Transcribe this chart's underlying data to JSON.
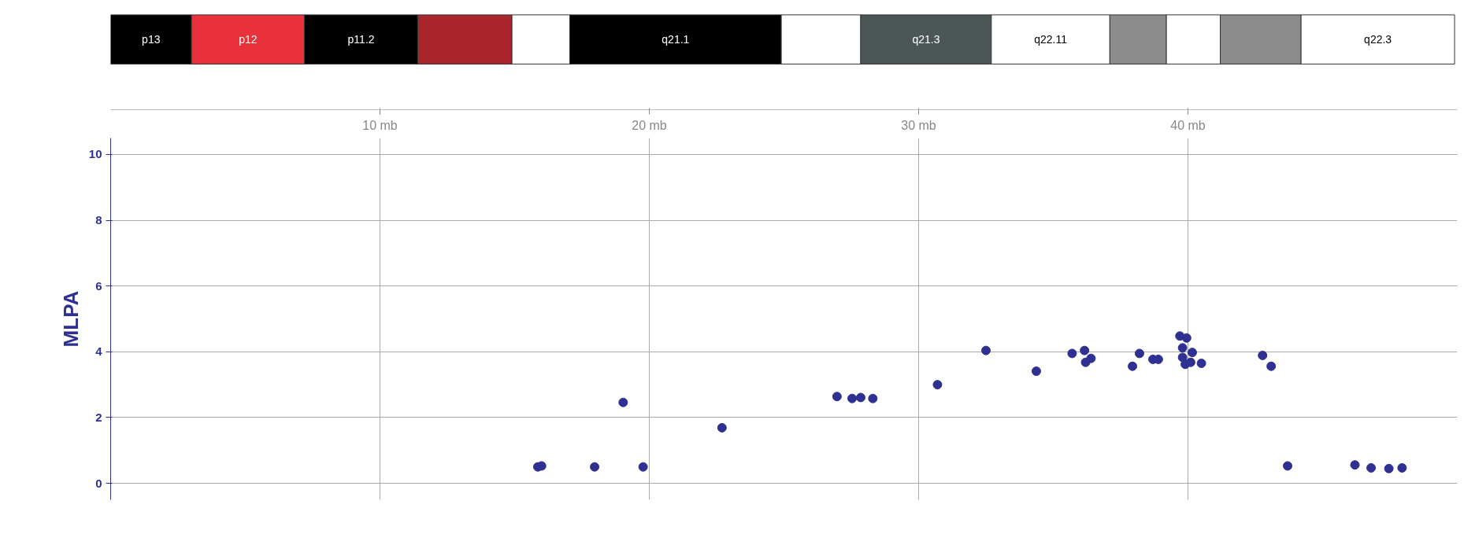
{
  "chart_data": [
    {
      "type": "bar",
      "orientation": "horizontal",
      "stacked": true,
      "categories": [
        null
      ],
      "xlim": [
        0,
        50
      ],
      "xticks": [
        {
          "value": 10,
          "label": "10 mb"
        },
        {
          "value": 20,
          "label": "20 mb"
        },
        {
          "value": 30,
          "label": "30 mb"
        },
        {
          "value": 40,
          "label": "40 mb"
        }
      ],
      "series": [
        {
          "name": "p13",
          "color": "#000000",
          "values": [
            3.0
          ]
        },
        {
          "name": "p12",
          "color": "#e8313a",
          "values": [
            4.2
          ]
        },
        {
          "name": "p11.2",
          "color": "#000000",
          "values": [
            4.2
          ]
        },
        {
          "color": "#a8262c",
          "values": [
            3.5
          ]
        },
        {
          "color": "#ffffff",
          "values": [
            2.15
          ]
        },
        {
          "name": "q21.1",
          "color": "#000000",
          "values": [
            7.85
          ]
        },
        {
          "color": "#ffffff",
          "values": [
            2.95
          ]
        },
        {
          "name": "q21.3",
          "color": "#4d5656",
          "values": [
            4.85
          ]
        },
        {
          "name": "q22.11",
          "color": "#ffffff",
          "values": [
            4.4
          ]
        },
        {
          "color": "#8c8c8c",
          "values": [
            2.1
          ]
        },
        {
          "color": "#ffffff",
          "values": [
            2.0
          ]
        },
        {
          "color": "#8c8c8c",
          "values": [
            3.0
          ]
        },
        {
          "name": "q22.3",
          "color": "#ffffff",
          "values": [
            5.7
          ]
        }
      ]
    },
    {
      "type": "scatter",
      "ylabel": "MLPA",
      "x": [
        15.86,
        16.0,
        17.97,
        19.03,
        19.77,
        22.7,
        26.97,
        27.53,
        27.85,
        28.3,
        30.7,
        32.5,
        34.37,
        35.7,
        36.16,
        36.2,
        36.4,
        37.94,
        38.2,
        38.7,
        38.9,
        39.7,
        39.95,
        39.8,
        39.8,
        39.9,
        40.1,
        40.16,
        40.5,
        42.77,
        43.09,
        43.7,
        46.2,
        46.8,
        47.46,
        47.95
      ],
      "series": [
        {
          "color": "#2e3192",
          "values": [
            0.5,
            0.53,
            0.5,
            2.46,
            0.5,
            1.69,
            2.64,
            2.58,
            2.61,
            2.58,
            3.0,
            4.04,
            3.41,
            3.95,
            4.04,
            3.68,
            3.8,
            3.56,
            3.95,
            3.77,
            3.77,
            4.48,
            4.42,
            4.12,
            3.83,
            3.62,
            3.68,
            3.98,
            3.65,
            3.89,
            3.56,
            0.53,
            0.56,
            0.47,
            0.45,
            0.47
          ]
        }
      ],
      "marker": "circle",
      "xlim": [
        0,
        50
      ],
      "ylim": [
        -0.5,
        10.5
      ],
      "xticks": [
        10,
        20,
        30,
        40
      ],
      "yticks": [
        0,
        2,
        4,
        6,
        8,
        10
      ],
      "tick_labels": "y",
      "grid": true
    }
  ]
}
